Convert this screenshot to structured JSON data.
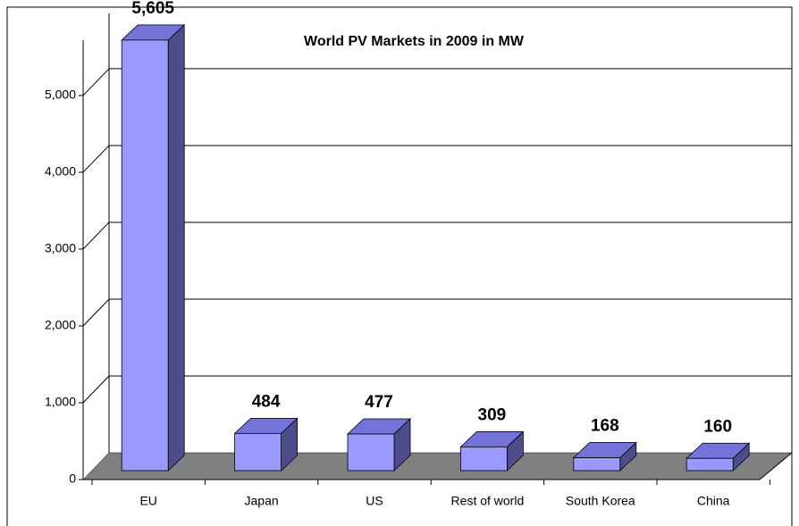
{
  "chart_data": {
    "type": "bar3d",
    "title": "World PV Markets in 2009 in MW",
    "categories": [
      "EU",
      "Japan",
      "US",
      "Rest of world",
      "South Korea",
      "China"
    ],
    "values": [
      5605,
      484,
      477,
      309,
      168,
      160
    ],
    "value_labels": [
      "5,605",
      "484",
      "477",
      "309",
      "168",
      "160"
    ],
    "color": "#9999ff",
    "ylim": [
      0,
      5720
    ],
    "yticks": [
      0,
      {
        "value": 1000,
        "label": "1,000"
      },
      {
        "value": 2000,
        "label": "2,000"
      },
      {
        "value": 3000,
        "label": "3,000"
      },
      {
        "value": 4000,
        "label": "4,000"
      },
      {
        "value": 5000,
        "label": "5,000"
      }
    ],
    "grid": true
  }
}
